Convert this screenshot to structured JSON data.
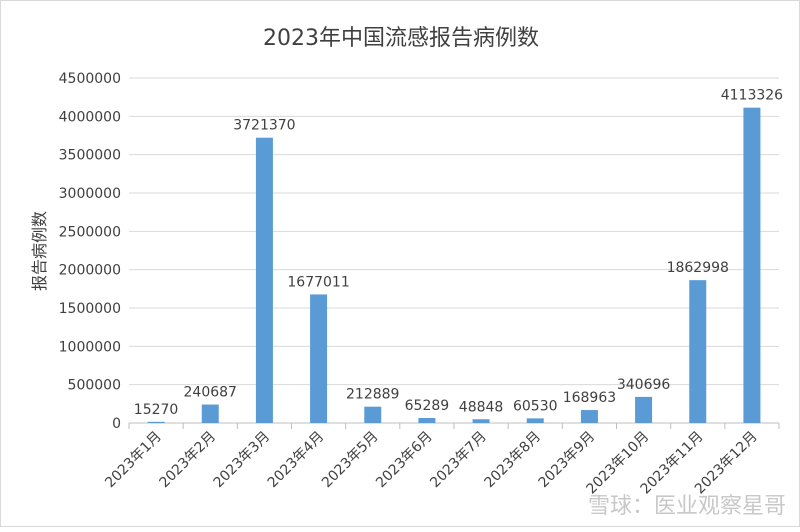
{
  "chart_data": {
    "type": "bar",
    "title": "2023年中国流感报告病例数",
    "xlabel": "",
    "ylabel": "报告病例数",
    "categories": [
      "2023年1月",
      "2023年2月",
      "2023年3月",
      "2023年4月",
      "2023年5月",
      "2023年6月",
      "2023年7月",
      "2023年8月",
      "2023年9月",
      "2023年10月",
      "2023年11月",
      "2023年12月"
    ],
    "values": [
      15270,
      240687,
      3721370,
      1677011,
      212889,
      65289,
      48848,
      60530,
      168963,
      340696,
      1862998,
      4113326
    ],
    "ylim": [
      0,
      4500000
    ],
    "yticks": [
      0,
      500000,
      1000000,
      1500000,
      2000000,
      2500000,
      3000000,
      3500000,
      4000000,
      4500000
    ],
    "grid": true,
    "legend": "none",
    "bar_color": "#5b9bd5",
    "grid_color": "#d9d9d9"
  },
  "watermark": "雪球：医业观察星哥"
}
